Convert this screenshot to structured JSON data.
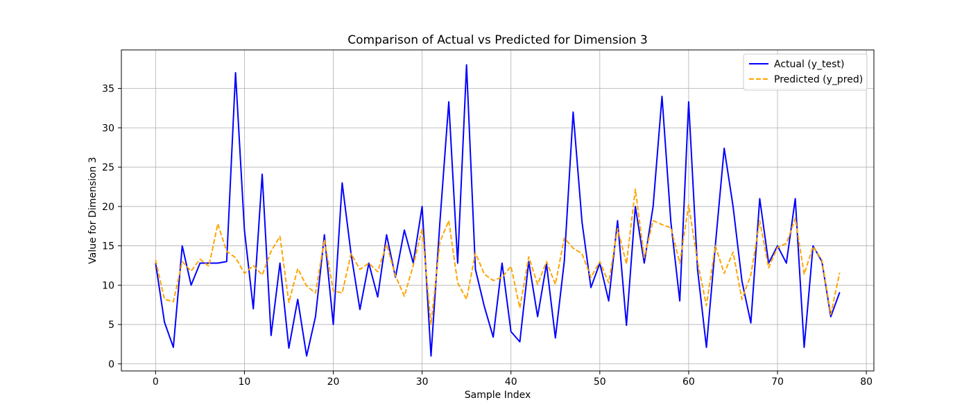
{
  "chart_data": {
    "type": "line",
    "title": "Comparison of Actual vs Predicted for Dimension 3",
    "xlabel": "Sample Index",
    "ylabel": "Value for Dimension 3",
    "xlim": [
      -3.85,
      80.85
    ],
    "ylim": [
      -0.9,
      39.9
    ],
    "xticks": [
      0,
      10,
      20,
      30,
      40,
      50,
      60,
      70,
      80
    ],
    "yticks": [
      0,
      5,
      10,
      15,
      20,
      25,
      30,
      35
    ],
    "grid": true,
    "legend_position": "top-right",
    "series": [
      {
        "name": "Actual (y_test)",
        "color": "#0000ff",
        "style": "solid",
        "values": [
          12.8,
          5.3,
          2.1,
          15.0,
          10.0,
          12.8,
          12.8,
          12.8,
          13.0,
          37.0,
          17.0,
          7.0,
          24.1,
          3.6,
          12.8,
          2.0,
          8.2,
          1.0,
          6.0,
          16.4,
          5.0,
          23.0,
          14.0,
          6.9,
          12.8,
          8.5,
          16.4,
          11.0,
          17.0,
          12.8,
          20.0,
          1.0,
          18.0,
          33.3,
          12.8,
          38.0,
          12.0,
          7.3,
          3.4,
          12.8,
          4.1,
          2.8,
          13.0,
          6.0,
          12.7,
          3.3,
          13.0,
          32.0,
          18.0,
          9.7,
          12.8,
          8.0,
          18.2,
          4.9,
          20.0,
          12.8,
          20.0,
          34.0,
          18.0,
          8.0,
          33.3,
          12.0,
          2.1,
          15.0,
          27.4,
          20.0,
          10.5,
          5.2,
          21.0,
          12.8,
          15.0,
          12.8,
          21.0,
          2.1,
          15.0,
          13.0,
          6.0,
          9.1
        ]
      },
      {
        "name": "Predicted (y_pred)",
        "color": "#ffa500",
        "style": "dashed",
        "values": [
          13.2,
          8.2,
          7.9,
          13.0,
          11.8,
          13.3,
          12.4,
          17.8,
          14.3,
          13.5,
          11.5,
          12.5,
          11.3,
          14.3,
          16.2,
          7.8,
          12.1,
          9.9,
          9.0,
          15.8,
          9.3,
          9.0,
          14.0,
          12.0,
          12.8,
          11.7,
          15.2,
          11.2,
          8.6,
          12.5,
          17.2,
          5.0,
          15.5,
          18.2,
          10.3,
          8.2,
          14.1,
          11.4,
          10.6,
          11.0,
          12.4,
          7.1,
          13.6,
          10.1,
          13.0,
          10.1,
          16.0,
          14.7,
          14.0,
          11.0,
          13.0,
          10.3,
          17.2,
          12.7,
          22.2,
          13.5,
          18.2,
          17.7,
          17.3,
          12.8,
          20.2,
          13.0,
          7.4,
          15.0,
          11.5,
          14.2,
          8.2,
          11.3,
          18.2,
          12.2,
          14.8,
          15.3,
          18.5,
          11.4,
          14.9,
          13.2,
          6.3,
          11.6
        ]
      }
    ]
  }
}
